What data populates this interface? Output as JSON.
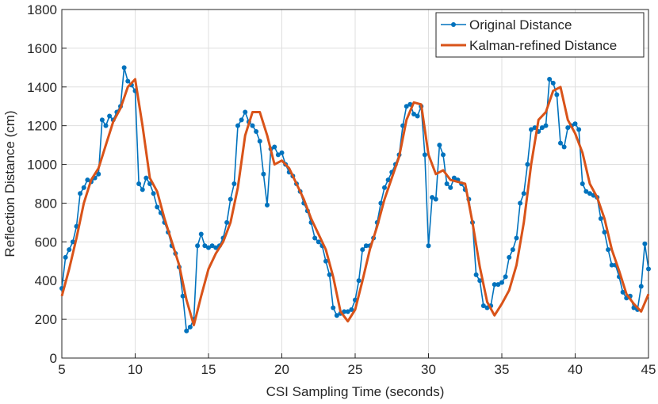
{
  "chart_data": {
    "type": "line",
    "xlabel": "CSI Sampling Time (seconds)",
    "ylabel": "Reflection Distance (cm)",
    "xlim": [
      5,
      45
    ],
    "xticks": [
      5,
      10,
      15,
      20,
      25,
      30,
      35,
      40,
      45
    ],
    "ylim": [
      0,
      1800
    ],
    "yticks": [
      0,
      200,
      400,
      600,
      800,
      1000,
      1200,
      1400,
      1600,
      1800
    ],
    "grid": true,
    "legend": "upper right",
    "series": [
      {
        "name": "Original Distance",
        "color": "#0072bd",
        "marker": true,
        "x": [
          5,
          5.25,
          5.5,
          5.75,
          6,
          6.25,
          6.5,
          6.75,
          7,
          7.25,
          7.5,
          7.75,
          8,
          8.25,
          8.5,
          8.75,
          9,
          9.25,
          9.5,
          9.75,
          10,
          10.25,
          10.5,
          10.75,
          11,
          11.25,
          11.5,
          11.75,
          12,
          12.25,
          12.5,
          12.75,
          13,
          13.25,
          13.5,
          13.75,
          14,
          14.25,
          14.5,
          14.75,
          15,
          15.25,
          15.5,
          15.75,
          16,
          16.25,
          16.5,
          16.75,
          17,
          17.25,
          17.5,
          17.75,
          18,
          18.25,
          18.5,
          18.75,
          19,
          19.25,
          19.5,
          19.75,
          20,
          20.25,
          20.5,
          20.75,
          21,
          21.25,
          21.5,
          21.75,
          22,
          22.25,
          22.5,
          22.75,
          23,
          23.25,
          23.5,
          23.75,
          24,
          24.25,
          24.5,
          24.75,
          25,
          25.25,
          25.5,
          25.75,
          26,
          26.25,
          26.5,
          26.75,
          27,
          27.25,
          27.5,
          27.75,
          28,
          28.25,
          28.5,
          28.75,
          29,
          29.25,
          29.5,
          29.75,
          30,
          30.25,
          30.5,
          30.75,
          31,
          31.25,
          31.5,
          31.75,
          32,
          32.25,
          32.5,
          32.75,
          33,
          33.25,
          33.5,
          33.75,
          34,
          34.25,
          34.5,
          34.75,
          35,
          35.25,
          35.5,
          35.75,
          36,
          36.25,
          36.5,
          36.75,
          37,
          37.25,
          37.5,
          37.75,
          38,
          38.25,
          38.5,
          38.75,
          39,
          39.25,
          39.5,
          39.75,
          40,
          40.25,
          40.5,
          40.75,
          41,
          41.25,
          41.5,
          41.75,
          42,
          42.25,
          42.5,
          42.75,
          43,
          43.25,
          43.5,
          43.75,
          44,
          44.25,
          44.5,
          44.75,
          45
        ],
        "values": [
          360,
          520,
          560,
          600,
          680,
          850,
          880,
          920,
          910,
          930,
          950,
          1230,
          1200,
          1250,
          1230,
          1270,
          1300,
          1500,
          1430,
          1410,
          1380,
          900,
          870,
          930,
          900,
          850,
          780,
          750,
          700,
          650,
          580,
          540,
          470,
          320,
          140,
          160,
          200,
          580,
          640,
          580,
          570,
          580,
          570,
          580,
          620,
          700,
          820,
          900,
          1200,
          1230,
          1270,
          1220,
          1200,
          1170,
          1120,
          950,
          790,
          1080,
          1090,
          1050,
          1060,
          1000,
          960,
          940,
          900,
          860,
          800,
          760,
          700,
          620,
          600,
          580,
          500,
          430,
          260,
          220,
          230,
          240,
          240,
          250,
          300,
          400,
          560,
          580,
          580,
          620,
          700,
          800,
          880,
          920,
          960,
          1000,
          1050,
          1200,
          1300,
          1310,
          1260,
          1250,
          1300,
          1050,
          580,
          830,
          820,
          1100,
          1050,
          900,
          880,
          930,
          920,
          900,
          870,
          820,
          700,
          430,
          400,
          270,
          260,
          270,
          380,
          380,
          390,
          420,
          520,
          560,
          620,
          800,
          850,
          1000,
          1180,
          1190,
          1170,
          1190,
          1200,
          1440,
          1420,
          1360,
          1110,
          1090,
          1190,
          1200,
          1210,
          1180,
          900,
          860,
          850,
          840,
          830,
          720,
          650,
          560,
          480,
          480,
          420,
          340,
          310,
          320,
          260,
          250,
          370,
          590,
          460
        ]
      },
      {
        "name": "Kalman-refined Distance",
        "color": "#d95319",
        "marker": false,
        "x": [
          5,
          5.5,
          6,
          6.5,
          7,
          7.5,
          8,
          8.5,
          9,
          9.5,
          10,
          10.5,
          11,
          11.5,
          12,
          12.5,
          13,
          13.5,
          14,
          14.5,
          15,
          15.5,
          16,
          16.5,
          17,
          17.5,
          18,
          18.5,
          19,
          19.5,
          20,
          20.5,
          21,
          21.5,
          22,
          22.5,
          23,
          23.5,
          24,
          24.5,
          25,
          25.5,
          26,
          26.5,
          27,
          27.5,
          28,
          28.5,
          29,
          29.5,
          30,
          30.5,
          31,
          31.5,
          32,
          32.5,
          33,
          33.5,
          34,
          34.5,
          35,
          35.5,
          36,
          36.5,
          37,
          37.5,
          38,
          38.5,
          39,
          39.5,
          40,
          40.5,
          41,
          41.5,
          42,
          42.5,
          43,
          43.5,
          44,
          44.5,
          45
        ],
        "values": [
          320,
          460,
          620,
          800,
          920,
          980,
          1100,
          1220,
          1290,
          1400,
          1440,
          1200,
          930,
          860,
          720,
          600,
          480,
          300,
          170,
          320,
          460,
          540,
          600,
          700,
          880,
          1150,
          1270,
          1270,
          1150,
          1000,
          1020,
          980,
          900,
          820,
          720,
          640,
          560,
          420,
          240,
          190,
          250,
          400,
          560,
          680,
          820,
          930,
          1040,
          1230,
          1320,
          1310,
          1050,
          950,
          970,
          920,
          910,
          900,
          700,
          470,
          290,
          220,
          280,
          350,
          480,
          700,
          1000,
          1230,
          1270,
          1380,
          1400,
          1230,
          1160,
          1060,
          900,
          830,
          720,
          560,
          450,
          330,
          280,
          240,
          330
        ]
      }
    ]
  }
}
